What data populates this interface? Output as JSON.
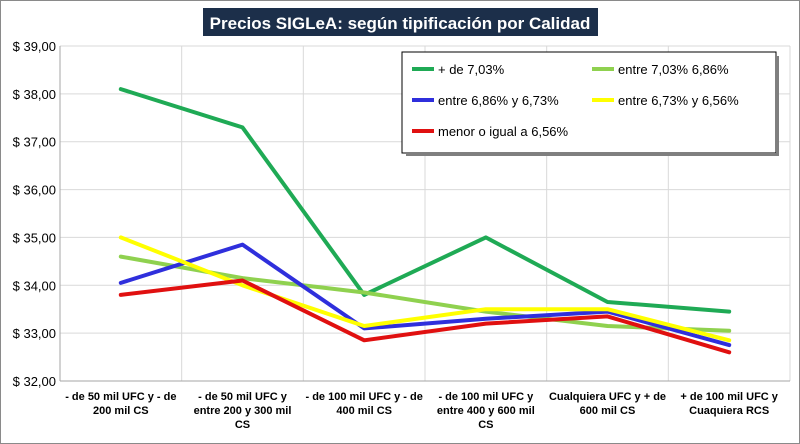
{
  "chart_data": {
    "type": "line",
    "title": "Precios SIGLeA: según tipificación por Calidad",
    "xlabel": "",
    "ylabel": "",
    "ylim": [
      32,
      39
    ],
    "y_step": 1,
    "y_tick_prefix": "$ ",
    "grid": true,
    "legend_position": "top-right",
    "categories": [
      [
        "- de 50 mil UFC y - de",
        "200 mil CS"
      ],
      [
        "- de 50 mil UFC y",
        "entre  200 y 300 mil",
        "CS"
      ],
      [
        "- de 100 mil UFC y - de",
        "400 mil CS"
      ],
      [
        "- de 100 mil UFC y",
        "entre  400 y 600 mil",
        "CS"
      ],
      [
        "Cualquiera UFC y + de",
        "600 mil CS"
      ],
      [
        "+ de 100 mil UFC y",
        "Cuaquiera RCS"
      ]
    ],
    "series": [
      {
        "name": "+ de 7,03%",
        "color": "#1faa55",
        "values": [
          38.1,
          37.3,
          33.8,
          35.0,
          33.65,
          33.45
        ]
      },
      {
        "name": "entre 7,03% 6,86%",
        "color": "#8fd14f",
        "values": [
          34.6,
          34.15,
          33.85,
          33.45,
          33.15,
          33.05
        ]
      },
      {
        "name": "entre 6,86% y 6,73%",
        "color": "#2f2fdc",
        "values": [
          34.05,
          34.85,
          33.1,
          33.3,
          33.45,
          32.75
        ]
      },
      {
        "name": "entre 6,73% y 6,56%",
        "color": "#ffff00",
        "values": [
          35.0,
          34.0,
          33.15,
          33.5,
          33.5,
          32.85
        ]
      },
      {
        "name": "menor o igual a 6,56%",
        "color": "#e01010",
        "values": [
          33.8,
          34.1,
          32.85,
          33.2,
          33.35,
          32.6
        ]
      }
    ]
  }
}
